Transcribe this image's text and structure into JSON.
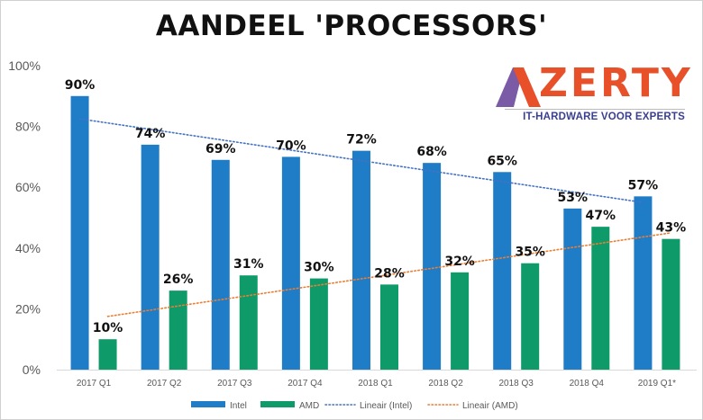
{
  "title": "AANDEEL 'PROCESSORS'",
  "logo": {
    "word": "ZERTY",
    "full": "AZERTY",
    "tagline": "IT-HARDWARE VOOR EXPERTS",
    "colors": {
      "orange": "#e8502a",
      "purple": "#7b5aa6",
      "navy": "#3a3f8f"
    }
  },
  "chart_data": {
    "type": "bar",
    "title": "AANDEEL 'PROCESSORS'",
    "categories": [
      "2017 Q1",
      "2017 Q2",
      "2017 Q3",
      "2017 Q4",
      "2018 Q1",
      "2018 Q2",
      "2018 Q3",
      "2018 Q4",
      "2019 Q1*"
    ],
    "series": [
      {
        "name": "Intel",
        "color": "#1f7cc7",
        "values": [
          90,
          74,
          69,
          70,
          72,
          68,
          65,
          53,
          57
        ],
        "labels": [
          "90%",
          "74%",
          "69%",
          "70%",
          "72%",
          "68%",
          "65%",
          "53%",
          "57%"
        ]
      },
      {
        "name": "AMD",
        "color": "#0f9a6a",
        "values": [
          10,
          26,
          31,
          30,
          28,
          32,
          35,
          47,
          43
        ],
        "labels": [
          "10%",
          "26%",
          "31%",
          "30%",
          "28%",
          "32%",
          "35%",
          "47%",
          "43%"
        ]
      }
    ],
    "trendlines": [
      {
        "name": "Lineair (Intel)",
        "of": "Intel",
        "color": "#4472c4",
        "style": "dotted",
        "start": 82.5,
        "end": 55
      },
      {
        "name": "Lineair (AMD)",
        "of": "AMD",
        "color": "#ed7d31",
        "style": "dotted",
        "start": 17.5,
        "end": 45
      }
    ],
    "ylim": [
      0,
      100
    ],
    "yticks": [
      0,
      20,
      40,
      60,
      80,
      100
    ],
    "ytick_labels": [
      "0%",
      "20%",
      "40%",
      "60%",
      "80%",
      "100%"
    ],
    "xlabel": "",
    "ylabel": "",
    "grid": false,
    "legend": "bottom"
  }
}
